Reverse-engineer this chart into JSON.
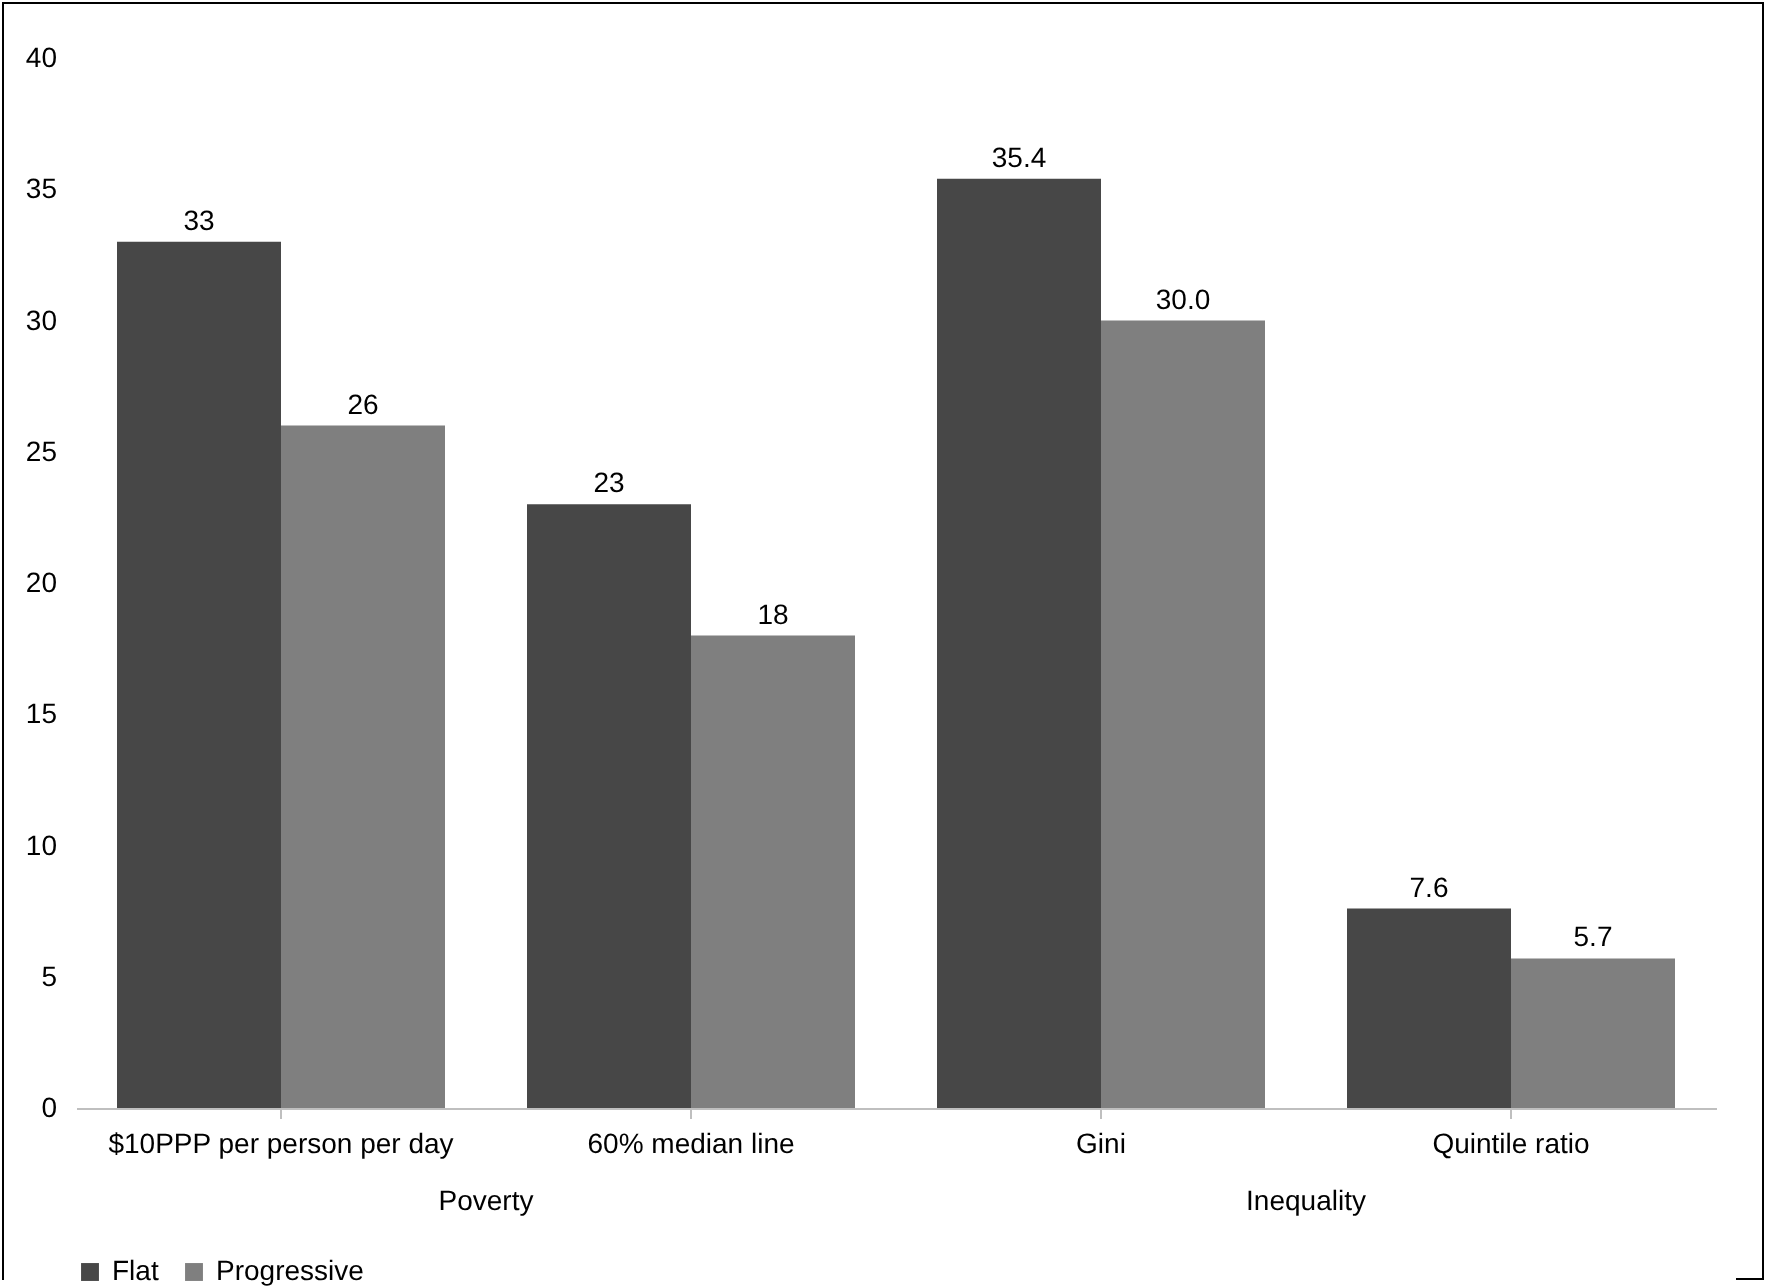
{
  "chart_data": {
    "type": "bar",
    "categories": [
      "$10PPP per person per day",
      "60% median line",
      "Gini",
      "Quintile ratio"
    ],
    "series": [
      {
        "name": "Flat",
        "color": "#474747",
        "values": [
          33,
          23,
          35.4,
          7.6
        ],
        "value_labels": [
          "33",
          "23",
          "35.4",
          "7.6"
        ]
      },
      {
        "name": "Progressive",
        "color": "#7f7f7f",
        "values": [
          26,
          18,
          30,
          5.7
        ],
        "value_labels": [
          "26",
          "18",
          "30.0",
          "5.7"
        ]
      }
    ],
    "annotations": [
      "Poverty",
      "Inequality"
    ],
    "ylim": [
      0,
      40
    ],
    "yticks": [
      0,
      5,
      10,
      15,
      20,
      25,
      30,
      35,
      40
    ],
    "grid": false,
    "legend": "bottom"
  }
}
